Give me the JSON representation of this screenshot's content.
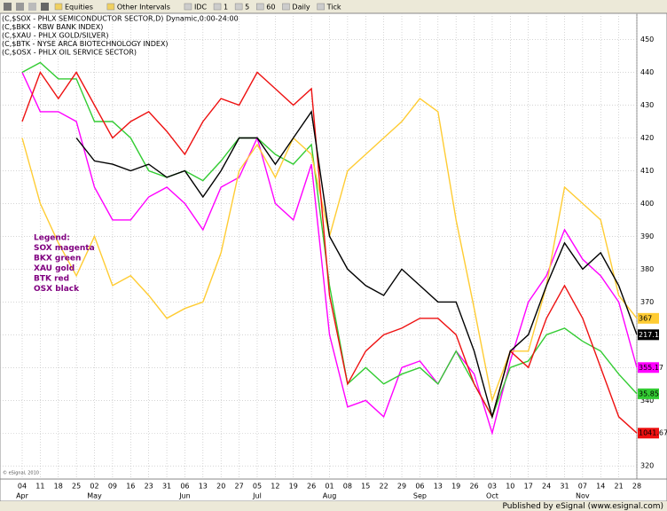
{
  "toolbar": [
    "Equities",
    "Other Intervals",
    "IDC",
    "1",
    "5",
    "60",
    "Daily",
    "Tick"
  ],
  "chart_data": {
    "type": "line",
    "header": [
      "(C,$SOX - PHLX SEMICONDUCTOR SECTOR,D) Dynamic,0:00-24:00",
      "(C,$BKX - KBW BANK INDEX)",
      "(C,$XAU - PHLX GOLD/SILVER)",
      "(C,$BTK - NYSE ARCA BIOTECHNOLOGY INDEX)",
      "(C,$OSX - PHLX OIL SERVICE SECTOR)"
    ],
    "legend_text": [
      "Legend:",
      "SOX magenta",
      "BKX green",
      "XAU gold",
      "BTK red",
      "OSX black"
    ],
    "legend_color": "#800080",
    "copyright": "© eSignal, 2010",
    "footer": "Published by eSignal (www.esignal.com)",
    "categories": [
      "04",
      "11",
      "18",
      "25",
      "02",
      "09",
      "16",
      "23",
      "31",
      "06",
      "13",
      "20",
      "27",
      "05",
      "12",
      "19",
      "26",
      "01",
      "08",
      "15",
      "22",
      "29",
      "06",
      "13",
      "19",
      "26",
      "03",
      "10",
      "17",
      "24",
      "31",
      "07",
      "14",
      "21",
      "28"
    ],
    "month_labels": [
      "Apr",
      null,
      null,
      null,
      "May",
      null,
      null,
      null,
      null,
      "Jun",
      null,
      null,
      null,
      "Jul",
      null,
      null,
      null,
      "Aug",
      null,
      null,
      null,
      null,
      "Sep",
      null,
      null,
      null,
      "Oct",
      null,
      null,
      null,
      null,
      "Nov",
      null,
      null,
      null
    ],
    "ylim": [
      316,
      458
    ],
    "yticks": [
      320,
      330,
      340,
      350,
      360,
      370,
      380,
      390,
      400,
      410,
      420,
      430,
      440,
      450
    ],
    "grid": true,
    "series": [
      {
        "name": "SOX",
        "color": "#ff00ff",
        "price_tag": "355.17",
        "values": [
          440,
          428,
          428,
          425,
          405,
          395,
          395,
          402,
          405,
          400,
          392,
          405,
          408,
          420,
          400,
          395,
          412,
          360,
          338,
          340,
          335,
          350,
          352,
          345,
          355,
          348,
          330,
          352,
          370,
          378,
          392,
          383,
          378,
          370,
          350
        ]
      },
      {
        "name": "BKX",
        "color": "#33cc33",
        "price_tag": "35.85",
        "values": [
          440,
          443,
          438,
          438,
          425,
          425,
          420,
          410,
          408,
          410,
          407,
          413,
          420,
          420,
          415,
          412,
          418,
          375,
          345,
          350,
          345,
          348,
          350,
          345,
          355,
          345,
          335,
          350,
          352,
          360,
          362,
          358,
          355,
          348,
          342
        ]
      },
      {
        "name": "XAU",
        "color": "#ffcc33",
        "price_tag": "367",
        "values": [
          420,
          400,
          388,
          378,
          390,
          375,
          378,
          372,
          365,
          368,
          370,
          385,
          410,
          418,
          408,
          420,
          415,
          390,
          410,
          415,
          420,
          425,
          432,
          428,
          395,
          368,
          340,
          355,
          355,
          375,
          405,
          400,
          395,
          372,
          365
        ]
      },
      {
        "name": "BTK",
        "color": "#ee1111",
        "price_tag": "1041.67",
        "values": [
          425,
          440,
          432,
          440,
          430,
          420,
          425,
          428,
          422,
          415,
          425,
          432,
          430,
          440,
          435,
          430,
          435,
          372,
          345,
          355,
          360,
          362,
          365,
          365,
          360,
          345,
          335,
          355,
          350,
          365,
          375,
          365,
          350,
          335,
          330
        ]
      },
      {
        "name": "OSX",
        "color": "#000000",
        "price_tag": "217.1",
        "values": [
          null,
          null,
          null,
          420,
          413,
          412,
          410,
          412,
          408,
          410,
          402,
          410,
          420,
          420,
          412,
          420,
          428,
          390,
          380,
          375,
          372,
          380,
          375,
          370,
          370,
          355,
          335,
          355,
          360,
          375,
          388,
          380,
          385,
          375,
          360
        ]
      }
    ]
  }
}
